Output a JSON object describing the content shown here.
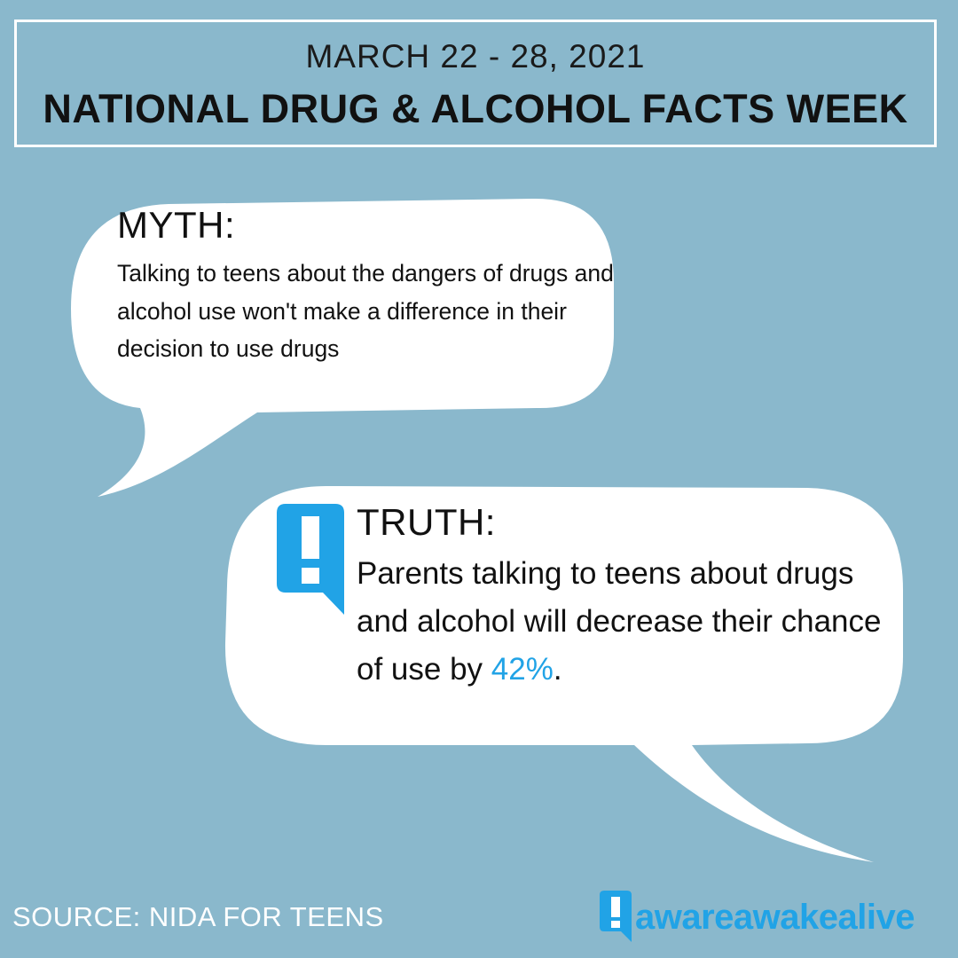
{
  "header": {
    "date": "MARCH 22 - 28, 2021",
    "title": "NATIONAL DRUG & ALCOHOL FACTS WEEK"
  },
  "myth": {
    "heading": "MYTH:",
    "text": "Talking to teens about the dangers of drugs and alcohol use won't make a difference in their decision to use drugs"
  },
  "truth": {
    "heading": "TRUTH:",
    "text_before": "Parents talking to teens about drugs and alcohol will decrease their chance of use by ",
    "highlight": "42%",
    "text_after": ".",
    "icon": "exclamation-speech-icon"
  },
  "footer": {
    "source": "SOURCE: NIDA FOR TEENS",
    "logo_text": "awareawakealive",
    "logo_icon": "exclamation-speech-icon"
  },
  "colors": {
    "background": "#8ab8cc",
    "bubble": "#ffffff",
    "accent": "#21a3e6",
    "text": "#111111"
  }
}
